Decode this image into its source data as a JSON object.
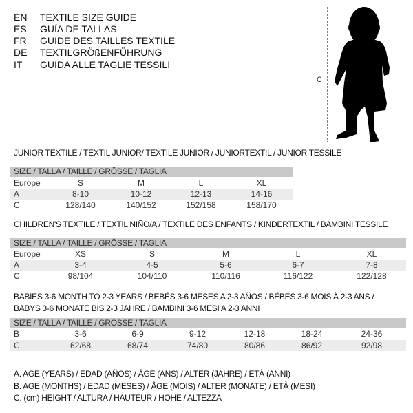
{
  "languages": [
    {
      "code": "EN",
      "text": "TEXTILE SIZE GUIDE"
    },
    {
      "code": "ES",
      "text": "GUÍA DE TALLAS"
    },
    {
      "code": "FR",
      "text": "GUIDE DES TAILLES TEXTILE"
    },
    {
      "code": "DE",
      "text": "TEXTILGRÖßENFÜHRUNG"
    },
    {
      "code": "IT",
      "text": "GUIDA ALLE TAGLIE TESSILI"
    }
  ],
  "figure": {
    "measure_label": "C"
  },
  "tables": [
    {
      "title": "JUNIOR TEXTILE / TEXTIL JUNIOR/ TEXTILE JUNIOR / JUNIORTEXTIL / JUNIOR TESSILE",
      "header": "SIZE / TALLA / TAILLE / GRÖSSE / TAGLIA",
      "rows": [
        {
          "label": "Europe",
          "cells": [
            "S",
            "M",
            "L",
            "XL"
          ]
        },
        {
          "label": "A",
          "cells": [
            "8-10",
            "10-12",
            "12-13",
            "14-16"
          ]
        },
        {
          "label": "C",
          "cells": [
            "128/140",
            "140/152",
            "152/158",
            "158/170"
          ]
        }
      ]
    },
    {
      "title": "CHILDREN'S TEXTILE / TEXTIL NIÑO/A / TEXTILE DES ENFANTS / KINDERTEXTIL / BAMBINI TESSILE",
      "header": "SIZE / TALLA / TAILLE / GRÖSSE / TAGLIA",
      "rows": [
        {
          "label": "Europe",
          "cells": [
            "XS",
            "S",
            "M",
            "L",
            "XL"
          ]
        },
        {
          "label": "A",
          "cells": [
            "3-4",
            "4-5",
            "5-6",
            "6-7",
            "7-8"
          ]
        },
        {
          "label": "C",
          "cells": [
            "98/104",
            "104/110",
            "110/116",
            "116/122",
            "122/128"
          ]
        }
      ]
    },
    {
      "title": "BABIES 3-6 MONTH TO 2-3 YEARS / BEBÉS 3-6 MESES A 2-3 AÑOS / BÉBÉS 3-6 MOIS À 2-3 ANS /",
      "title2": "BABYS 3-6 MONATE BIS 2-3 JAHRE / BAMBINI 3-6 MESI A 2-3 ANNI",
      "header": "SIZE / TALLA / TAILLE / GRÖSSE / TAGLIA",
      "rows": [
        {
          "label": "B",
          "cells": [
            "3-6",
            "6-9",
            "9-12",
            "12-18",
            "18-24",
            "24-36"
          ]
        },
        {
          "label": "C",
          "cells": [
            "62/68",
            "68/74",
            "74/80",
            "80/86",
            "86/92",
            "92/98"
          ]
        }
      ]
    }
  ],
  "legend": [
    "A. AGE (YEARS) / EDAD (AÑOS) / ÂGE (ANS) / ALTER (JAHRE) / ETÀ (ANNI)",
    "B. AGE (MONTHS) / EDAD (MESES) / ÂGE (MOIS) / ALTER (MONATE) / ETÀ (MESI)",
    "C. (cm) HEIGHT / ALTURA / HAUTEUR / HÖHE / ALTEZZA"
  ]
}
